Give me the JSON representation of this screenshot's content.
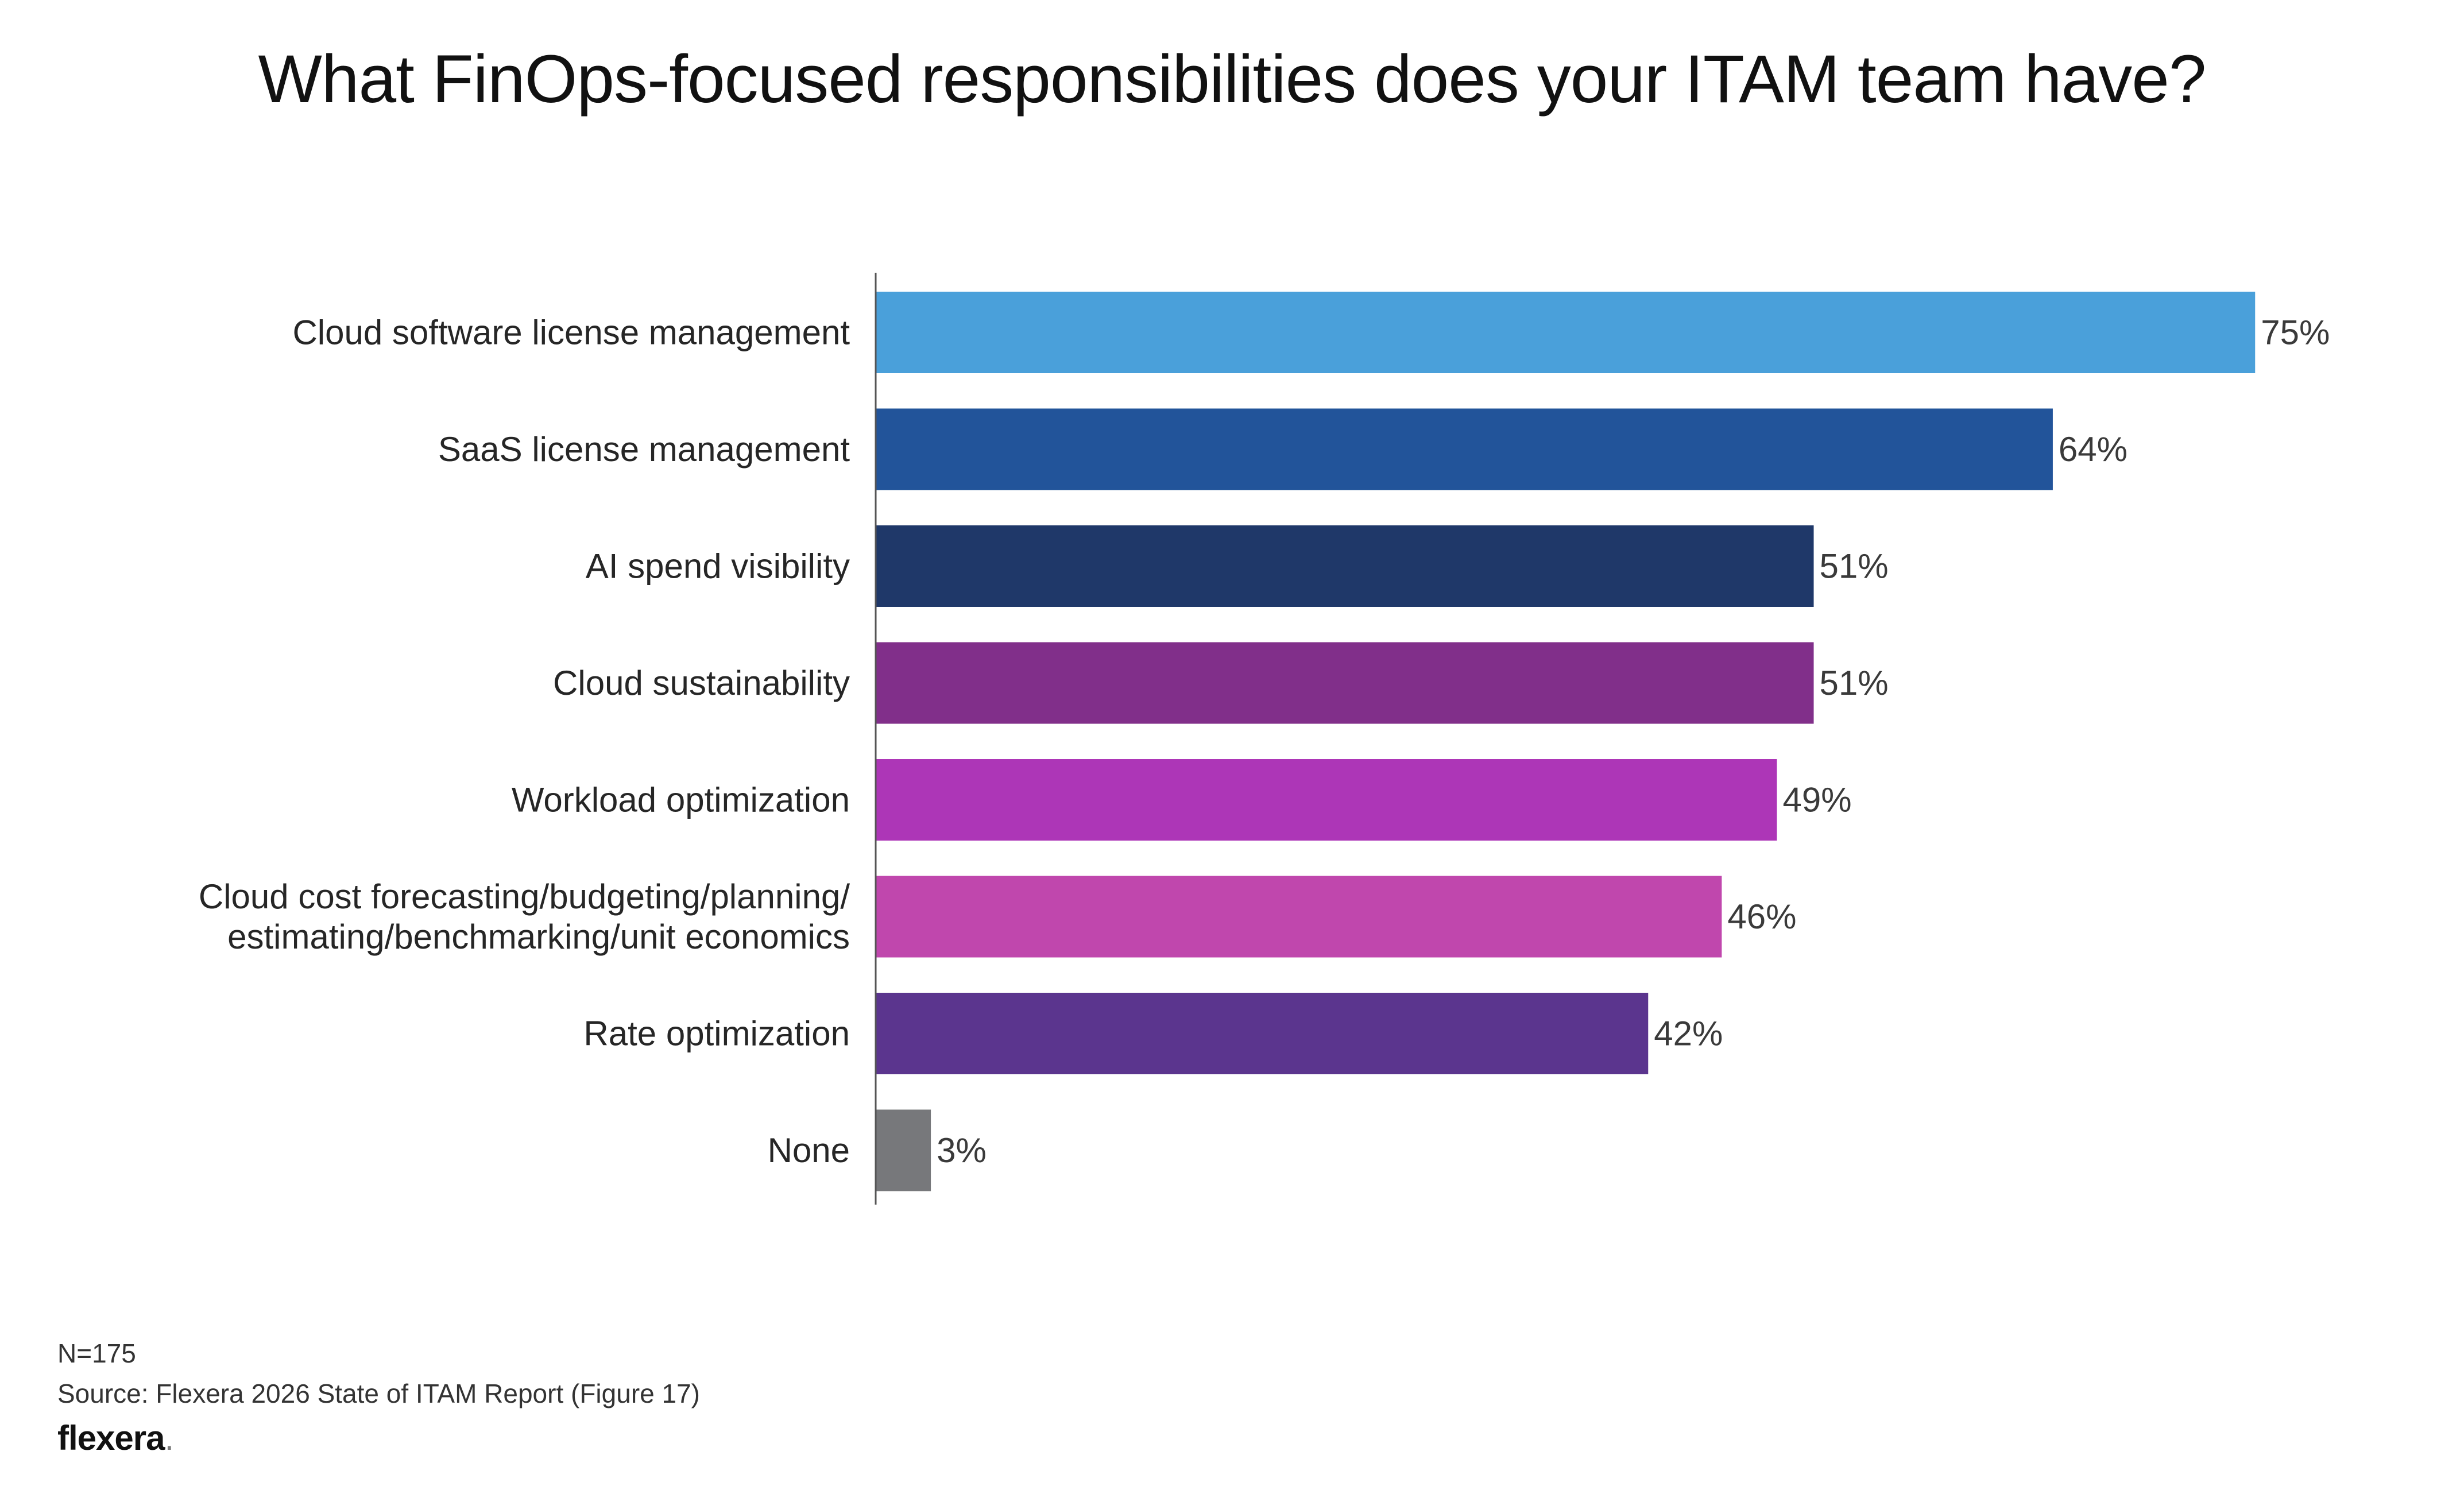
{
  "chart_data": {
    "type": "bar",
    "orientation": "horizontal",
    "title": "What FinOps-focused responsibilities does your ITAM team have?",
    "categories": [
      "Cloud software license management",
      "SaaS license management",
      "AI spend visibility",
      "Cloud sustainability",
      "Workload optimization",
      "Cloud cost forecasting/budgeting/planning/\nestimating/benchmarking/unit economics",
      "Rate optimization",
      "None"
    ],
    "values": [
      75,
      64,
      51,
      51,
      49,
      46,
      42,
      3
    ],
    "value_labels": [
      "75%",
      "64%",
      "51%",
      "51%",
      "49%",
      "46%",
      "42%",
      "3%"
    ],
    "colors": [
      "#4aa0da",
      "#22549a",
      "#1f3869",
      "#812f8a",
      "#ad36b7",
      "#c047ad",
      "#5b358e",
      "#77787b"
    ],
    "xlim": [
      0,
      100
    ],
    "grid": false,
    "legend": "none"
  },
  "footer": {
    "n": "N=175",
    "source": "Source: Flexera 2026 State of ITAM Report (Figure 17)"
  },
  "logo": {
    "text": "flexera",
    "dot": "."
  }
}
